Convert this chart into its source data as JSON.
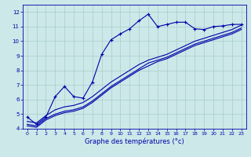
{
  "title": "Graphe des températures (°c)",
  "bg_color": "#cce8e8",
  "grid_color": "#aacccc",
  "line_color": "#0000aa",
  "xlim": [
    -0.5,
    23.5
  ],
  "ylim": [
    4,
    12.5
  ],
  "xticks": [
    0,
    1,
    2,
    3,
    4,
    5,
    6,
    7,
    8,
    9,
    10,
    11,
    12,
    13,
    14,
    15,
    16,
    17,
    18,
    19,
    20,
    21,
    22,
    23
  ],
  "yticks": [
    4,
    5,
    6,
    7,
    8,
    9,
    10,
    11,
    12
  ],
  "line1_x": [
    0,
    1,
    2,
    3,
    4,
    5,
    6,
    7,
    8,
    9,
    10,
    11,
    12,
    13,
    14,
    15,
    16,
    17,
    18,
    19,
    20,
    21,
    22,
    23
  ],
  "line1_y": [
    4.8,
    4.3,
    4.8,
    6.2,
    6.9,
    6.2,
    6.1,
    7.2,
    9.1,
    10.1,
    10.5,
    10.85,
    11.4,
    11.85,
    11.0,
    11.15,
    11.3,
    11.3,
    10.85,
    10.8,
    11.0,
    11.05,
    11.15,
    11.15
  ],
  "line2_x": [
    0,
    1,
    2,
    3,
    4,
    5,
    6,
    7,
    8,
    9,
    10,
    11,
    12,
    13,
    14,
    15,
    16,
    17,
    18,
    19,
    20,
    21,
    22,
    23
  ],
  "line2_y": [
    4.5,
    4.4,
    4.9,
    5.3,
    5.5,
    5.6,
    5.8,
    6.2,
    6.7,
    7.2,
    7.6,
    8.0,
    8.4,
    8.7,
    8.9,
    9.1,
    9.4,
    9.7,
    10.0,
    10.2,
    10.4,
    10.6,
    10.8,
    11.1
  ],
  "line3_x": [
    0,
    1,
    2,
    3,
    4,
    5,
    6,
    7,
    8,
    9,
    10,
    11,
    12,
    13,
    14,
    15,
    16,
    17,
    18,
    19,
    20,
    21,
    22,
    23
  ],
  "line3_y": [
    4.3,
    4.2,
    4.7,
    5.0,
    5.2,
    5.3,
    5.5,
    5.9,
    6.4,
    6.9,
    7.3,
    7.7,
    8.1,
    8.5,
    8.7,
    8.9,
    9.2,
    9.5,
    9.8,
    10.0,
    10.2,
    10.4,
    10.6,
    10.9
  ],
  "line4_x": [
    0,
    1,
    2,
    3,
    4,
    5,
    6,
    7,
    8,
    9,
    10,
    11,
    12,
    13,
    14,
    15,
    16,
    17,
    18,
    19,
    20,
    21,
    22,
    23
  ],
  "line4_y": [
    4.2,
    4.1,
    4.6,
    4.9,
    5.1,
    5.2,
    5.4,
    5.8,
    6.3,
    6.8,
    7.2,
    7.6,
    8.0,
    8.3,
    8.6,
    8.8,
    9.1,
    9.4,
    9.7,
    9.9,
    10.1,
    10.3,
    10.5,
    10.8
  ],
  "title_fontsize": 6,
  "tick_fontsize": 4.5
}
